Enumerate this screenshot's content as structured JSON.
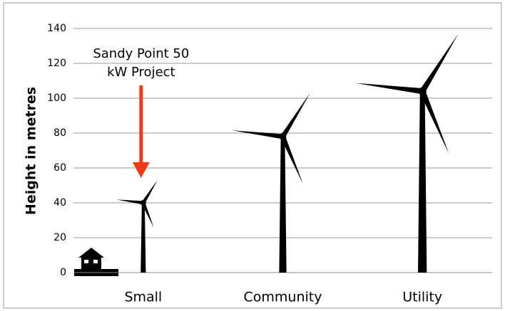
{
  "chart_data": {
    "type": "turbine",
    "y_label": "Height in metres",
    "categories": [
      "Small",
      "Community",
      "Utility"
    ],
    "series": [
      {
        "color": "#000000",
        "values": [
          40,
          78,
          104
        ]
      },
      {
        "color": "#000000",
        "values": [
          53,
          103,
          137
        ]
      }
    ],
    "ylim": [
      0,
      140
    ],
    "yticks": [
      0,
      20,
      40,
      60,
      80,
      100,
      120,
      140
    ],
    "grid": true,
    "annotation": {
      "lines": [
        "Sandy Point 50",
        "kW Project"
      ],
      "category": 0,
      "color": "#f03a17"
    }
  }
}
